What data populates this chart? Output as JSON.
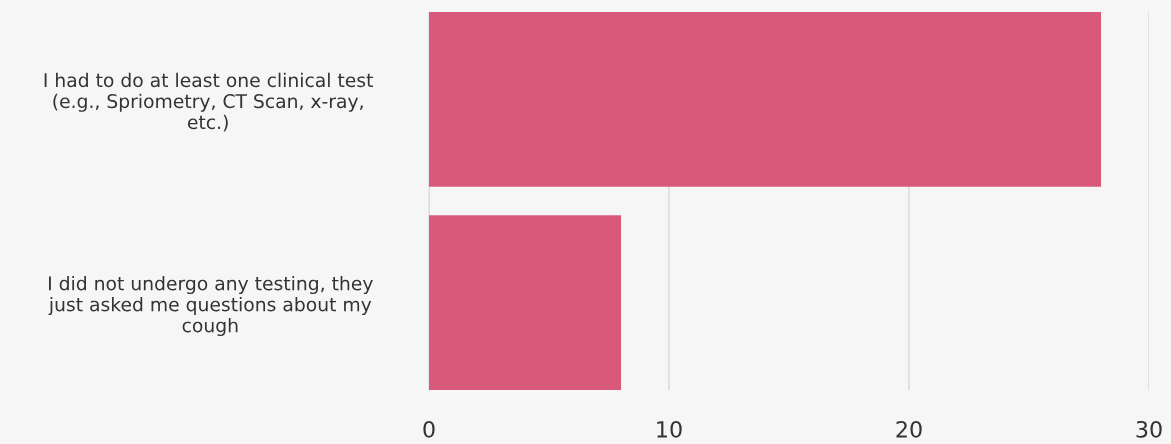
{
  "chart_data": {
    "type": "bar",
    "orientation": "horizontal",
    "categories": [
      "I had to do at least one clinical test\n(e.g., Spriometry, CT Scan, x-ray,\netc.)",
      "I did not undergo any testing, they\njust asked me questions about my\ncough"
    ],
    "values": [
      28,
      8
    ],
    "color": "#d9597a",
    "xlim": [
      0,
      30
    ],
    "xticks": [
      0,
      10,
      20,
      30
    ],
    "grid": "x"
  }
}
